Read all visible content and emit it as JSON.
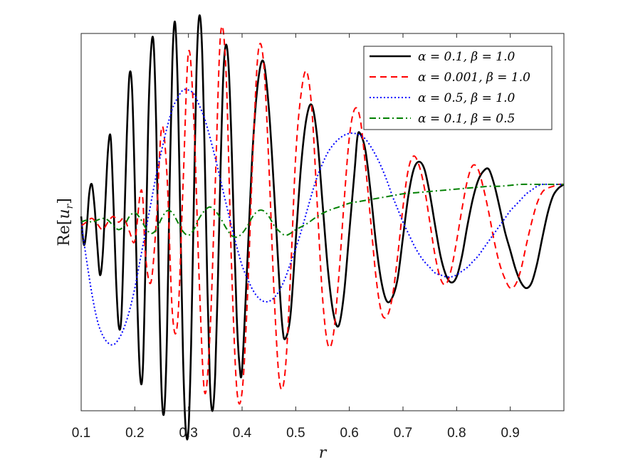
{
  "chart_data": {
    "type": "line",
    "title": "",
    "xlabel": "r",
    "ylabel": "Re[u_r]",
    "ylabel_display": {
      "prefix": "Re[",
      "var": "u",
      "sub": "r",
      "suffix": "]"
    },
    "xlim": [
      0.1,
      1.0
    ],
    "ylim": [
      -1.0,
      1.0
    ],
    "xticks": [
      0.1,
      0.2,
      0.3,
      0.4,
      0.5,
      0.6,
      0.7,
      0.8,
      0.9
    ],
    "xtick_labels": [
      "0.1",
      "0.2",
      "0.3",
      "0.4",
      "0.5",
      "0.6",
      "0.7",
      "0.8",
      "0.9"
    ],
    "yticks_shown": false,
    "grid": false,
    "legend_position": "top-right",
    "series": [
      {
        "name": "α = 0.1, β = 1.0",
        "color": "#000000",
        "style": "solid",
        "x": [
          0.1,
          0.105,
          0.11,
          0.115,
          0.12,
          0.125,
          0.13,
          0.135,
          0.14,
          0.145,
          0.15,
          0.155,
          0.16,
          0.165,
          0.17,
          0.175,
          0.18,
          0.185,
          0.19,
          0.195,
          0.2,
          0.205,
          0.21,
          0.215,
          0.22,
          0.225,
          0.23,
          0.235,
          0.24,
          0.245,
          0.25,
          0.255,
          0.26,
          0.265,
          0.27,
          0.275,
          0.28,
          0.285,
          0.29,
          0.295,
          0.3,
          0.305,
          0.31,
          0.315,
          0.32,
          0.325,
          0.33,
          0.335,
          0.34,
          0.345,
          0.35,
          0.355,
          0.36,
          0.365,
          0.37,
          0.375,
          0.38,
          0.385,
          0.39,
          0.395,
          0.4,
          0.41,
          0.42,
          0.43,
          0.44,
          0.45,
          0.46,
          0.47,
          0.475,
          0.48,
          0.49,
          0.5,
          0.51,
          0.52,
          0.53,
          0.54,
          0.55,
          0.56,
          0.57,
          0.58,
          0.59,
          0.6,
          0.61,
          0.615,
          0.62,
          0.63,
          0.64,
          0.65,
          0.66,
          0.67,
          0.68,
          0.69,
          0.7,
          0.71,
          0.72,
          0.73,
          0.74,
          0.75,
          0.76,
          0.77,
          0.78,
          0.79,
          0.8,
          0.81,
          0.82,
          0.83,
          0.84,
          0.85,
          0.86,
          0.87,
          0.88,
          0.89,
          0.9,
          0.91,
          0.92,
          0.93,
          0.94,
          0.95,
          0.96,
          0.97,
          0.98,
          0.99,
          1.0
        ],
        "y": [
          0.03,
          -0.12,
          -0.04,
          0.15,
          0.2,
          0.08,
          -0.12,
          -0.28,
          -0.18,
          0.1,
          0.38,
          0.45,
          0.12,
          -0.3,
          -0.55,
          -0.5,
          -0.05,
          0.45,
          0.78,
          0.7,
          0.2,
          -0.45,
          -0.82,
          -0.78,
          -0.2,
          0.52,
          0.9,
          0.95,
          0.5,
          -0.3,
          -0.9,
          -1.0,
          -0.6,
          0.2,
          0.85,
          1.06,
          0.72,
          0.0,
          -0.72,
          -1.1,
          -1.1,
          -0.65,
          0.1,
          0.8,
          1.09,
          0.95,
          0.4,
          -0.3,
          -0.85,
          -1.0,
          -0.8,
          -0.3,
          0.3,
          0.78,
          0.94,
          0.82,
          0.45,
          -0.05,
          -0.5,
          -0.75,
          -0.78,
          -0.2,
          0.4,
          0.75,
          0.85,
          0.6,
          0.15,
          -0.35,
          -0.55,
          -0.62,
          -0.5,
          -0.1,
          0.3,
          0.55,
          0.62,
          0.45,
          0.1,
          -0.25,
          -0.48,
          -0.55,
          -0.38,
          -0.05,
          0.28,
          0.45,
          0.47,
          0.38,
          0.15,
          -0.12,
          -0.32,
          -0.42,
          -0.4,
          -0.3,
          -0.08,
          0.14,
          0.28,
          0.32,
          0.28,
          0.15,
          -0.02,
          -0.18,
          -0.28,
          -0.32,
          -0.29,
          -0.18,
          -0.02,
          0.12,
          0.22,
          0.27,
          0.28,
          0.2,
          0.08,
          -0.05,
          -0.15,
          -0.25,
          -0.32,
          -0.35,
          -0.32,
          -0.22,
          -0.08,
          0.05,
          0.14,
          0.18,
          0.2
        ]
      },
      {
        "name": "α = 0.001, β = 1.0",
        "color": "#ff0000",
        "style": "dashed",
        "x": [
          0.1,
          0.11,
          0.12,
          0.13,
          0.14,
          0.15,
          0.16,
          0.17,
          0.18,
          0.19,
          0.2,
          0.21,
          0.215,
          0.22,
          0.23,
          0.24,
          0.25,
          0.26,
          0.27,
          0.28,
          0.29,
          0.3,
          0.31,
          0.32,
          0.33,
          0.34,
          0.35,
          0.36,
          0.37,
          0.38,
          0.39,
          0.4,
          0.41,
          0.42,
          0.43,
          0.44,
          0.45,
          0.46,
          0.47,
          0.48,
          0.49,
          0.5,
          0.51,
          0.52,
          0.53,
          0.54,
          0.55,
          0.56,
          0.57,
          0.58,
          0.59,
          0.6,
          0.61,
          0.62,
          0.63,
          0.64,
          0.65,
          0.66,
          0.67,
          0.68,
          0.69,
          0.7,
          0.71,
          0.72,
          0.73,
          0.74,
          0.75,
          0.76,
          0.77,
          0.78,
          0.79,
          0.8,
          0.81,
          0.82,
          0.83,
          0.84,
          0.85,
          0.86,
          0.87,
          0.88,
          0.89,
          0.9,
          0.91,
          0.92,
          0.93,
          0.94,
          0.95,
          0.96,
          0.97,
          0.98,
          0.99,
          1.0
        ],
        "y": [
          -0.02,
          0.0,
          0.02,
          -0.01,
          -0.04,
          0.0,
          0.03,
          0.0,
          0.02,
          -0.05,
          -0.1,
          0.15,
          0.12,
          -0.18,
          -0.32,
          0.0,
          0.5,
          0.25,
          -0.48,
          -0.52,
          0.2,
          0.9,
          0.55,
          -0.3,
          -0.9,
          -0.6,
          0.2,
          1.0,
          0.8,
          -0.2,
          -0.88,
          -0.9,
          -0.4,
          0.35,
          0.9,
          0.85,
          0.3,
          -0.4,
          -0.85,
          -0.8,
          -0.3,
          0.35,
          0.68,
          0.8,
          0.6,
          0.1,
          -0.4,
          -0.65,
          -0.6,
          -0.3,
          0.1,
          0.45,
          0.6,
          0.55,
          0.3,
          0.0,
          -0.3,
          -0.48,
          -0.5,
          -0.4,
          -0.18,
          0.08,
          0.28,
          0.35,
          0.3,
          0.18,
          0.0,
          -0.18,
          -0.3,
          -0.33,
          -0.25,
          -0.1,
          0.07,
          0.22,
          0.3,
          0.28,
          0.18,
          0.05,
          -0.1,
          -0.22,
          -0.3,
          -0.35,
          -0.33,
          -0.25,
          -0.12,
          0.0,
          0.1,
          0.16,
          0.18,
          0.19,
          0.2,
          0.2
        ]
      },
      {
        "name": "α = 0.5, β = 1.0",
        "color": "#0000ff",
        "style": "dotted",
        "x": [
          0.1,
          0.11,
          0.12,
          0.13,
          0.14,
          0.15,
          0.16,
          0.17,
          0.18,
          0.19,
          0.2,
          0.21,
          0.22,
          0.23,
          0.24,
          0.25,
          0.26,
          0.27,
          0.28,
          0.29,
          0.3,
          0.31,
          0.32,
          0.33,
          0.34,
          0.35,
          0.36,
          0.37,
          0.38,
          0.39,
          0.4,
          0.41,
          0.42,
          0.43,
          0.44,
          0.45,
          0.46,
          0.47,
          0.48,
          0.49,
          0.5,
          0.51,
          0.52,
          0.53,
          0.54,
          0.55,
          0.56,
          0.57,
          0.58,
          0.59,
          0.6,
          0.61,
          0.62,
          0.63,
          0.64,
          0.65,
          0.66,
          0.67,
          0.68,
          0.69,
          0.7,
          0.71,
          0.72,
          0.73,
          0.74,
          0.75,
          0.76,
          0.77,
          0.78,
          0.79,
          0.8,
          0.81,
          0.82,
          0.83,
          0.84,
          0.85,
          0.86,
          0.87,
          0.88,
          0.89,
          0.9,
          0.91,
          0.92,
          0.93,
          0.94,
          0.95,
          0.96,
          0.97,
          0.98,
          0.99,
          1.0
        ],
        "y": [
          0.0,
          -0.2,
          -0.38,
          -0.52,
          -0.6,
          -0.64,
          -0.65,
          -0.62,
          -0.56,
          -0.47,
          -0.35,
          -0.2,
          -0.05,
          0.1,
          0.25,
          0.38,
          0.5,
          0.6,
          0.66,
          0.7,
          0.7,
          0.68,
          0.62,
          0.55,
          0.45,
          0.34,
          0.22,
          0.1,
          -0.02,
          -0.13,
          -0.23,
          -0.3,
          -0.36,
          -0.4,
          -0.42,
          -0.42,
          -0.4,
          -0.36,
          -0.3,
          -0.22,
          -0.14,
          -0.05,
          0.05,
          0.15,
          0.24,
          0.31,
          0.37,
          0.41,
          0.44,
          0.46,
          0.47,
          0.47,
          0.46,
          0.44,
          0.4,
          0.35,
          0.29,
          0.22,
          0.14,
          0.07,
          0.0,
          -0.06,
          -0.12,
          -0.17,
          -0.21,
          -0.24,
          -0.27,
          -0.28,
          -0.29,
          -0.29,
          -0.28,
          -0.26,
          -0.24,
          -0.21,
          -0.18,
          -0.14,
          -0.1,
          -0.06,
          -0.02,
          0.02,
          0.06,
          0.09,
          0.12,
          0.15,
          0.17,
          0.19,
          0.2,
          0.2,
          0.2,
          0.2,
          0.2
        ]
      },
      {
        "name": "α = 0.1, β = 0.5",
        "color": "#008000",
        "style": "dashdot",
        "x": [
          0.1,
          0.11,
          0.12,
          0.13,
          0.14,
          0.15,
          0.16,
          0.17,
          0.18,
          0.19,
          0.2,
          0.21,
          0.22,
          0.23,
          0.24,
          0.25,
          0.26,
          0.27,
          0.28,
          0.29,
          0.3,
          0.31,
          0.32,
          0.33,
          0.34,
          0.35,
          0.36,
          0.37,
          0.38,
          0.39,
          0.4,
          0.41,
          0.42,
          0.43,
          0.44,
          0.45,
          0.46,
          0.47,
          0.48,
          0.49,
          0.5,
          0.52,
          0.54,
          0.56,
          0.58,
          0.6,
          0.62,
          0.64,
          0.66,
          0.68,
          0.7,
          0.72,
          0.74,
          0.76,
          0.78,
          0.8,
          0.82,
          0.84,
          0.86,
          0.88,
          0.9,
          0.92,
          0.94,
          0.96,
          0.98,
          1.0
        ],
        "y": [
          0.0,
          0.01,
          0.0,
          0.01,
          0.02,
          0.01,
          -0.02,
          -0.04,
          -0.02,
          0.03,
          0.05,
          0.02,
          -0.03,
          -0.06,
          -0.04,
          0.02,
          0.06,
          0.05,
          0.0,
          -0.05,
          -0.07,
          -0.04,
          0.02,
          0.06,
          0.08,
          0.06,
          0.02,
          -0.03,
          -0.07,
          -0.08,
          -0.06,
          -0.02,
          0.03,
          0.06,
          0.06,
          0.03,
          -0.02,
          -0.05,
          -0.07,
          -0.06,
          -0.04,
          -0.01,
          0.03,
          0.06,
          0.08,
          0.1,
          0.11,
          0.12,
          0.13,
          0.14,
          0.15,
          0.155,
          0.16,
          0.165,
          0.17,
          0.175,
          0.18,
          0.185,
          0.19,
          0.19,
          0.195,
          0.2,
          0.2,
          0.2,
          0.2,
          0.2
        ]
      }
    ]
  }
}
